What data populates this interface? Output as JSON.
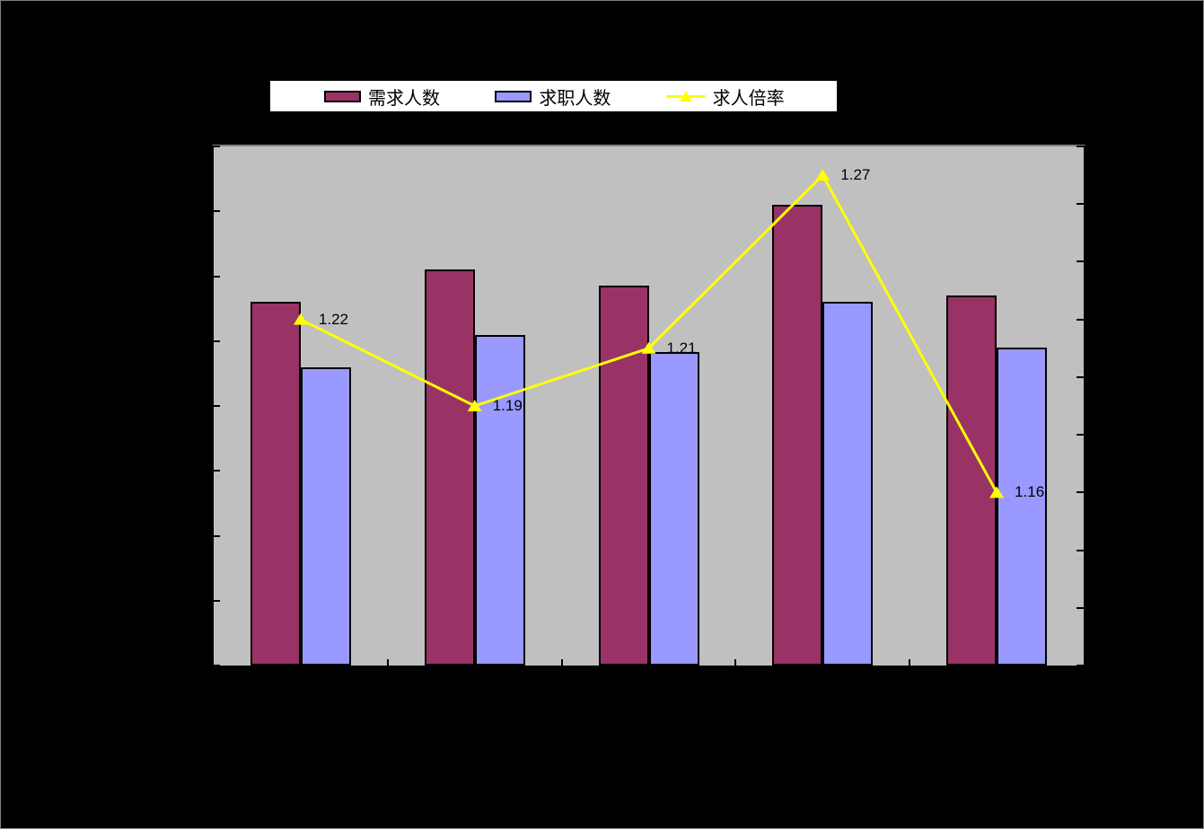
{
  "legend": {
    "items": [
      {
        "label": "需求人数",
        "swatch": "bar",
        "color": "#993366"
      },
      {
        "label": "求职人数",
        "swatch": "bar",
        "color": "#9999FF"
      },
      {
        "label": "求人倍率",
        "swatch": "line-marker",
        "color": "#FFFF00"
      }
    ]
  },
  "chart_data": {
    "type": "bar",
    "subtype": "clustered-bars-with-line-on-secondary-axis",
    "title": "",
    "xlabel": "",
    "ylabel": "",
    "categories": [
      "",
      "",
      "",
      "",
      ""
    ],
    "series": [
      {
        "name": "需求人数",
        "type": "bar",
        "axis": "primary",
        "color": "#993366",
        "values": [
          5.6,
          6.1,
          5.85,
          7.1,
          5.7
        ]
      },
      {
        "name": "求职人数",
        "type": "bar",
        "axis": "primary",
        "color": "#9999FF",
        "values": [
          4.6,
          5.1,
          4.83,
          5.6,
          4.9
        ]
      },
      {
        "name": "求人倍率",
        "type": "line",
        "axis": "secondary",
        "color": "#FFFF00",
        "marker": "triangle",
        "values": [
          1.22,
          1.19,
          1.21,
          1.27,
          1.16
        ],
        "point_labels": [
          "1.22",
          "1.19",
          "1.21",
          "1.27",
          "1.16"
        ]
      }
    ],
    "primary_axis": {
      "min": 0,
      "max": 8,
      "tick_count": 9,
      "tick_labels_visible": false
    },
    "secondary_axis": {
      "min": 1.1,
      "max": 1.28,
      "step": 0.02,
      "tick_count": 10,
      "tick_labels_visible": false
    },
    "grid": false,
    "legend_position": "top",
    "plot_bg_color": "#C0C0C0",
    "canvas_bg_color": "#000000",
    "axis_line_color": "#000000",
    "plot_top_border_color": "#808080",
    "data_label_color": "#000000"
  }
}
